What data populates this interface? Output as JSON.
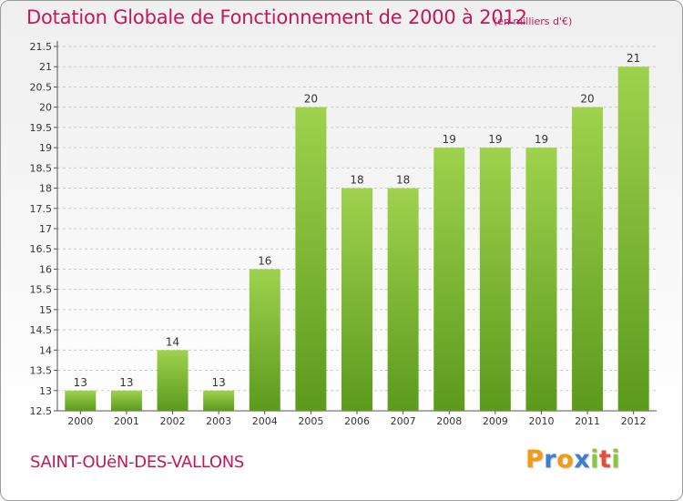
{
  "title": "Dotation Globale de Fonctionnement de 2000 à 2012",
  "subtitle": "(en milliers d'€)",
  "commune": "SAINT-OUëN-DES-VALLONS",
  "logo": {
    "letters": [
      "P",
      "r",
      "o",
      "x",
      "i",
      "t",
      "i"
    ],
    "colors": [
      "#f39c12",
      "#3a7fd5",
      "#f39c12",
      "#3a7fd5",
      "#8cc63f",
      "#e74c3c",
      "#8cc63f"
    ]
  },
  "colors": {
    "title": "#c2185b",
    "bar_light": "#9ed24e",
    "bar_dark": "#5c9a1c",
    "grid": "#cccccc"
  },
  "chart_data": {
    "type": "bar",
    "title": "Dotation Globale de Fonctionnement de 2000 à 2012",
    "xlabel": "",
    "ylabel": "",
    "categories": [
      "2000",
      "2001",
      "2002",
      "2003",
      "2004",
      "2005",
      "2006",
      "2007",
      "2008",
      "2009",
      "2010",
      "2011",
      "2012"
    ],
    "values": [
      13,
      13,
      14,
      13,
      16,
      20,
      18,
      18,
      19,
      19,
      19,
      20,
      21
    ],
    "data_labels": [
      "13",
      "13",
      "14",
      "13",
      "16",
      "20",
      "18",
      "18",
      "19",
      "19",
      "19",
      "20",
      "21"
    ],
    "ylim": [
      12.5,
      21.5
    ],
    "yticks": [
      "12.5",
      "13",
      "13.5",
      "14",
      "14.5",
      "15",
      "15.5",
      "16",
      "16.5",
      "17",
      "17.5",
      "18",
      "18.5",
      "19",
      "19.5",
      "20",
      "20.5",
      "21",
      "21.5"
    ],
    "grid": true
  }
}
